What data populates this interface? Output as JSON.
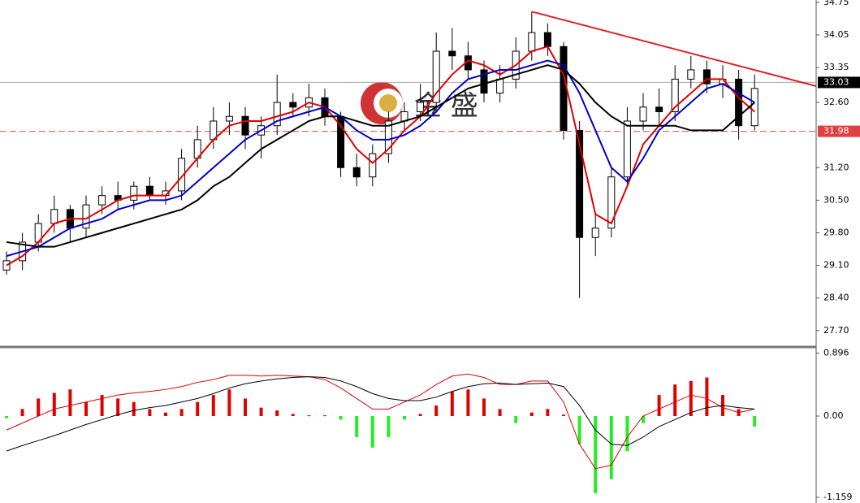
{
  "chart_data": [
    {
      "type": "candlestick",
      "ylim": [
        27.4,
        34.8
      ],
      "yticks": [
        34.75,
        34.05,
        33.35,
        {
          "value": 32.6,
          "label": "32.60"
        },
        {
          "value": 31.2,
          "label": "31.20"
        },
        {
          "value": 30.5,
          "label": "30.50"
        },
        {
          "value": 29.8,
          "label": "29.80"
        },
        {
          "value": 29.1,
          "label": "29.10"
        },
        {
          "value": 28.4,
          "label": "28.40"
        },
        {
          "value": 27.7,
          "label": "27.70"
        }
      ],
      "open": [
        29.0,
        29.2,
        29.6,
        30.0,
        30.3,
        29.9,
        30.4,
        30.6,
        30.5,
        30.8,
        30.6,
        30.7,
        31.4,
        31.8,
        32.2,
        32.3,
        31.9,
        32.1,
        32.6,
        32.5,
        32.7,
        32.3,
        31.2,
        31.0,
        31.5,
        32.2,
        32.4,
        32.6,
        33.7,
        33.6,
        33.3,
        32.8,
        33.1,
        33.7,
        34.1,
        33.8,
        32.0,
        29.7,
        29.9,
        31.0,
        32.2,
        32.5,
        32.4,
        33.1,
        33.3,
        33.0,
        33.1,
        32.1
      ],
      "high": [
        29.4,
        29.8,
        30.2,
        30.6,
        30.4,
        30.6,
        30.8,
        30.9,
        30.9,
        31.0,
        30.9,
        31.6,
        32.1,
        32.5,
        32.6,
        32.5,
        32.3,
        33.2,
        32.8,
        33.0,
        32.9,
        32.4,
        31.5,
        31.7,
        32.4,
        32.6,
        33.0,
        34.1,
        34.2,
        33.9,
        33.5,
        33.4,
        34.0,
        34.55,
        34.3,
        33.9,
        32.2,
        30.2,
        31.2,
        32.5,
        32.8,
        32.9,
        33.4,
        33.6,
        33.5,
        33.4,
        33.3,
        33.2
      ],
      "low": [
        28.9,
        29.0,
        29.4,
        29.8,
        29.6,
        29.7,
        30.2,
        30.3,
        30.3,
        30.5,
        30.4,
        30.5,
        31.2,
        31.6,
        31.9,
        31.6,
        31.4,
        31.9,
        32.3,
        32.3,
        32.1,
        31.0,
        30.8,
        30.8,
        31.3,
        32.0,
        32.2,
        32.4,
        33.3,
        33.1,
        32.6,
        32.6,
        32.9,
        33.5,
        33.6,
        31.8,
        28.4,
        29.3,
        29.7,
        30.8,
        32.0,
        32.1,
        32.2,
        32.9,
        32.8,
        32.7,
        31.8,
        32.0
      ],
      "close": [
        29.2,
        29.6,
        30.0,
        30.3,
        29.9,
        30.4,
        30.6,
        30.5,
        30.8,
        30.6,
        30.7,
        31.4,
        31.8,
        32.2,
        32.3,
        31.9,
        32.1,
        32.6,
        32.5,
        32.7,
        32.3,
        31.2,
        31.0,
        31.5,
        32.2,
        32.4,
        32.6,
        33.7,
        33.6,
        33.3,
        32.8,
        33.1,
        33.7,
        34.1,
        33.8,
        32.0,
        29.7,
        29.9,
        31.0,
        32.2,
        32.5,
        32.4,
        33.1,
        33.3,
        33.0,
        33.1,
        32.1,
        32.9
      ],
      "series": [
        {
          "color": "#e00000",
          "values": [
            29.1,
            29.3,
            29.6,
            30.0,
            30.1,
            30.1,
            30.3,
            30.5,
            30.6,
            30.6,
            30.6,
            31.0,
            31.4,
            31.8,
            32.1,
            32.2,
            32.2,
            32.3,
            32.4,
            32.6,
            32.5,
            32.1,
            31.6,
            31.3,
            31.6,
            32.0,
            32.3,
            32.8,
            33.2,
            33.5,
            33.4,
            33.2,
            33.4,
            33.7,
            33.8,
            33.2,
            31.7,
            30.2,
            30.0,
            30.8,
            31.7,
            32.1,
            32.5,
            32.8,
            33.1,
            33.1,
            32.7,
            32.4
          ]
        },
        {
          "color": "#0000cc",
          "values": [
            29.3,
            29.4,
            29.5,
            29.7,
            29.9,
            30.0,
            30.1,
            30.3,
            30.4,
            30.5,
            30.5,
            30.6,
            30.9,
            31.2,
            31.5,
            31.8,
            32.0,
            32.2,
            32.3,
            32.4,
            32.5,
            32.3,
            32.0,
            31.8,
            31.8,
            31.9,
            32.1,
            32.4,
            32.8,
            33.1,
            33.2,
            33.3,
            33.3,
            33.4,
            33.5,
            33.4,
            32.8,
            32.0,
            31.2,
            30.9,
            31.4,
            32.0,
            32.3,
            32.6,
            32.9,
            33.0,
            32.8,
            32.6
          ]
        },
        {
          "color": "#000000",
          "values": [
            29.6,
            29.55,
            29.5,
            29.5,
            29.6,
            29.7,
            29.8,
            29.9,
            30.0,
            30.1,
            30.2,
            30.3,
            30.5,
            30.8,
            31.0,
            31.3,
            31.6,
            31.8,
            32.0,
            32.2,
            32.3,
            32.3,
            32.2,
            32.1,
            32.1,
            32.2,
            32.3,
            32.5,
            32.7,
            32.9,
            33.0,
            33.1,
            33.2,
            33.3,
            33.4,
            33.3,
            33.0,
            32.6,
            32.3,
            32.1,
            32.1,
            32.1,
            32.1,
            32.0,
            32.0,
            32.0,
            32.3,
            32.6
          ]
        }
      ],
      "trendline": [
        34.55,
        32.95
      ],
      "trendline_color": "#e02020",
      "last_price": 33.03,
      "alert_price": 31.98,
      "watermark": "金 盛"
    },
    {
      "type": "macd",
      "ylim": [
        -1.24,
        0.95
      ],
      "yticks": [
        0.896,
        {
          "value": 0,
          "label": "0.00"
        },
        -1.159
      ],
      "histogram": [
        -0.03,
        0.1,
        0.25,
        0.33,
        0.38,
        0.2,
        0.3,
        0.25,
        0.2,
        0.1,
        0.05,
        0.1,
        0.2,
        0.3,
        0.38,
        0.25,
        0.12,
        0.08,
        0.03,
        0.01,
        0.01,
        -0.05,
        -0.3,
        -0.45,
        -0.3,
        -0.05,
        0.03,
        0.15,
        0.35,
        0.38,
        0.25,
        0.1,
        -0.1,
        0.05,
        0.1,
        0.02,
        -0.4,
        -1.1,
        -0.9,
        -0.5,
        -0.1,
        0.3,
        0.45,
        0.5,
        0.55,
        0.3,
        0.1,
        -0.15
      ],
      "up_color": "#e00000",
      "down_color": "#22ee22",
      "series": [
        {
          "color": "#e00000",
          "values": [
            -0.2,
            -0.1,
            0.0,
            0.1,
            0.15,
            0.2,
            0.25,
            0.3,
            0.33,
            0.35,
            0.38,
            0.42,
            0.48,
            0.52,
            0.58,
            0.58,
            0.57,
            0.58,
            0.57,
            0.56,
            0.52,
            0.4,
            0.25,
            0.1,
            0.1,
            0.2,
            0.3,
            0.45,
            0.57,
            0.6,
            0.55,
            0.45,
            0.45,
            0.5,
            0.5,
            0.2,
            -0.4,
            -0.75,
            -0.7,
            -0.3,
            0.0,
            0.1,
            0.2,
            0.3,
            0.25,
            0.12,
            0.05,
            0.1
          ]
        },
        {
          "color": "#000000",
          "values": [
            -0.5,
            -0.42,
            -0.35,
            -0.28,
            -0.2,
            -0.12,
            -0.05,
            0.02,
            0.08,
            0.12,
            0.15,
            0.2,
            0.25,
            0.32,
            0.4,
            0.46,
            0.5,
            0.53,
            0.55,
            0.56,
            0.55,
            0.5,
            0.42,
            0.32,
            0.25,
            0.22,
            0.22,
            0.27,
            0.35,
            0.42,
            0.46,
            0.47,
            0.45,
            0.46,
            0.47,
            0.42,
            0.15,
            -0.2,
            -0.4,
            -0.42,
            -0.3,
            -0.15,
            -0.05,
            0.05,
            0.12,
            0.15,
            0.12,
            0.1
          ]
        }
      ]
    }
  ]
}
